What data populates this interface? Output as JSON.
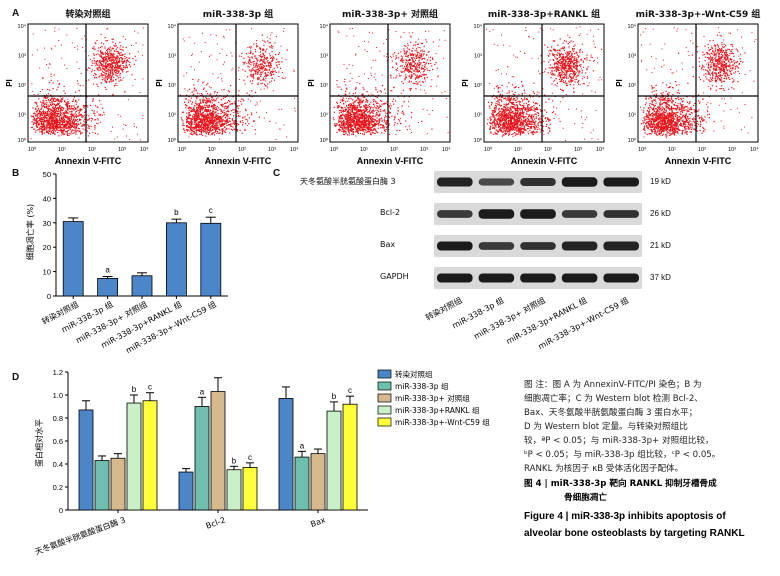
{
  "panel_letters": {
    "a": "A",
    "b": "B",
    "c": "C",
    "d": "D"
  },
  "flow": {
    "xlabel": "Annexin V-FITC",
    "ylabel": "PI",
    "ticks": [
      "10⁰",
      "10¹",
      "10²",
      "10³",
      "10⁴"
    ],
    "titles": [
      "转染对照组",
      "miR-338-3p 组",
      "miR-338-3p+ 对照组",
      "miR-338-3p+RANKL 组",
      "miR-338-3p+-Wnt-C59 组"
    ],
    "accent": "#e8141b"
  },
  "chart_b": {
    "ylabel": "细胞凋亡率 (%)",
    "categories": [
      "转染对照组",
      "miR-338-3p 组",
      "miR-338-3p+ 对照组",
      "miR-338-3p+RANKL 组",
      "miR-338-3p+-Wnt-C59 组"
    ],
    "letters": [
      "",
      "a",
      "",
      "b",
      "c"
    ],
    "yticks": [
      "0",
      "10",
      "20",
      "30",
      "40",
      "50"
    ]
  },
  "blot": {
    "proteins": [
      "天冬氨酸半胱氨酸蛋白酶 3",
      "Bcl-2",
      "Bax",
      "GAPDH"
    ],
    "sizes": [
      "19 kD",
      "26 kD",
      "21 kD",
      "37 kD"
    ],
    "lanes": [
      "转染对照组",
      "miR-338-3p 组",
      "miR-338-3p+ 对照组",
      "miR-338-3p+RANKL 组",
      "miR-338-3p+-Wnt-C59 组"
    ]
  },
  "chart_d": {
    "ylabel": "蛋白相对水平",
    "groups": [
      "天冬氨酸半胱氨酸蛋白酶 3",
      "Bcl-2",
      "Bax"
    ],
    "legend": [
      "转染对照组",
      "miR-338-3p 组",
      "miR-338-3p+ 对照组",
      "miR-338-3p+RANKL 组",
      "miR-338-3p+-Wnt-C59 组"
    ],
    "yticks": [
      "0",
      "0.2",
      "0.4",
      "0.6",
      "0.8",
      "1.0",
      "1.2"
    ]
  },
  "chart_data": [
    {
      "type": "bar",
      "panel": "B",
      "categories": [
        "转染对照组",
        "miR-338-3p 组",
        "miR-338-3p+ 对照组",
        "miR-338-3p+RANKL 组",
        "miR-338-3p+-Wnt-C59 组"
      ],
      "values": [
        30.5,
        7.2,
        8.3,
        30.0,
        29.8
      ],
      "errors": [
        1.5,
        0.8,
        1.2,
        1.5,
        2.5
      ],
      "ylabel": "细胞凋亡率 (%)",
      "ylim": [
        0,
        50
      ],
      "color": "#4a86c8"
    },
    {
      "type": "bar",
      "panel": "D",
      "categories": [
        "天冬氨酸半胱氨酸蛋白酶 3",
        "Bcl-2",
        "Bax"
      ],
      "ylabel": "蛋白相对水平",
      "ylim": [
        0,
        1.2
      ],
      "series": [
        {
          "name": "转染对照组",
          "color": "#4a86c8",
          "values": [
            0.87,
            0.33,
            0.97
          ],
          "errors": [
            0.08,
            0.03,
            0.1
          ],
          "letters": [
            "",
            "",
            ""
          ]
        },
        {
          "name": "miR-338-3p 组",
          "color": "#6fbfae",
          "values": [
            0.43,
            0.9,
            0.46
          ],
          "errors": [
            0.04,
            0.08,
            0.05
          ],
          "letters": [
            "",
            "a",
            "a"
          ]
        },
        {
          "name": "miR-338-3p+ 对照组",
          "color": "#d6b98d",
          "values": [
            0.45,
            1.03,
            0.49
          ],
          "errors": [
            0.04,
            0.12,
            0.04
          ],
          "letters": [
            "",
            "",
            ""
          ]
        },
        {
          "name": "miR-338-3p+RANKL 组",
          "color": "#c9f0c6",
          "values": [
            0.93,
            0.35,
            0.86
          ],
          "errors": [
            0.07,
            0.03,
            0.08
          ],
          "letters": [
            "b",
            "b",
            "b"
          ]
        },
        {
          "name": "miR-338-3p+-Wnt-C59 组",
          "color": "#ffff3a",
          "values": [
            0.95,
            0.37,
            0.92
          ],
          "errors": [
            0.07,
            0.04,
            0.07
          ],
          "letters": [
            "c",
            "c",
            "c"
          ]
        }
      ]
    }
  ],
  "caption": {
    "note_lines": [
      "图 注：图 A 为 AnnexinV-FITC/PI 染色；B 为",
      "细胞凋亡率；C 为 Western blot 检测 Bcl-2、",
      "Bax、天冬氨酸半胱氨酸蛋白酶 3 蛋白水平；",
      "D 为 Western blot 定量。与转染对照组比",
      "较，ªP < 0.05；与 miR-338-3p+ 对照组比较，",
      "ᵇP < 0.05；与 miR-338-3p 组比较，ᶜP < 0.05。",
      "RANKL 为核因子 κB 受体活化因子配体。"
    ],
    "fig_cn_1": "图 4  |  miR-338-3p 靶向 RANKL 抑制牙槽骨成",
    "fig_cn_2": "骨细胞凋亡",
    "fig_en_1": "Figure 4  |  miR-338-3p inhibits apoptosis of",
    "fig_en_2": "alveolar bone osteoblasts by targeting RANKL"
  }
}
